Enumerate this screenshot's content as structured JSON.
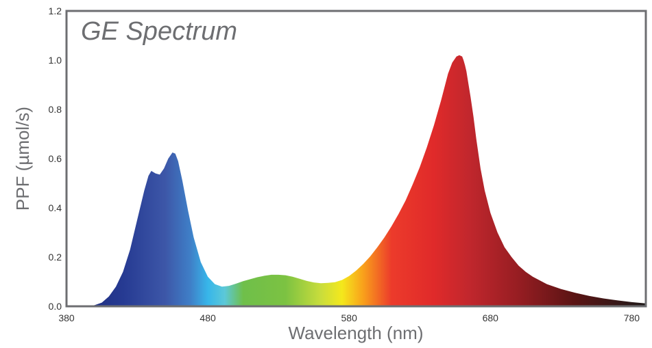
{
  "chart_data": {
    "type": "area",
    "title": "GE Spectrum",
    "xlabel": "Wavelength (nm)",
    "ylabel": "PPF (µmol/s)",
    "xlim": [
      380,
      790
    ],
    "ylim": [
      0,
      1.2
    ],
    "x_ticks": [
      "380",
      "480",
      "580",
      "680",
      "780"
    ],
    "y_ticks": [
      "0.0",
      "0.2",
      "0.4",
      "0.6",
      "0.8",
      "1.0",
      "1.2"
    ],
    "grid": false,
    "legend": "none",
    "frame_color": "#6d6e71",
    "series": [
      {
        "x": [
          380,
          395,
          400,
          405,
          410,
          415,
          420,
          425,
          430,
          435,
          438,
          440,
          443,
          446,
          449,
          452,
          455,
          457,
          459,
          462,
          466,
          470,
          475,
          480,
          485,
          490,
          495,
          500,
          505,
          510,
          515,
          520,
          525,
          530,
          535,
          540,
          545,
          550,
          555,
          560,
          565,
          570,
          575,
          580,
          585,
          590,
          595,
          600,
          605,
          610,
          615,
          620,
          625,
          630,
          635,
          640,
          645,
          650,
          653,
          656,
          658,
          660,
          661,
          662,
          663,
          664,
          666,
          668,
          670,
          673,
          676,
          680,
          685,
          690,
          695,
          700,
          705,
          710,
          720,
          730,
          740,
          750,
          760,
          770,
          780,
          790
        ],
        "y": [
          0.0,
          0.0,
          0.005,
          0.015,
          0.04,
          0.08,
          0.14,
          0.23,
          0.35,
          0.47,
          0.53,
          0.55,
          0.54,
          0.535,
          0.56,
          0.6,
          0.625,
          0.62,
          0.59,
          0.51,
          0.39,
          0.28,
          0.18,
          0.12,
          0.09,
          0.08,
          0.083,
          0.092,
          0.102,
          0.11,
          0.118,
          0.124,
          0.128,
          0.128,
          0.126,
          0.12,
          0.112,
          0.103,
          0.097,
          0.094,
          0.095,
          0.098,
          0.107,
          0.123,
          0.145,
          0.172,
          0.203,
          0.24,
          0.28,
          0.325,
          0.375,
          0.43,
          0.495,
          0.565,
          0.645,
          0.735,
          0.835,
          0.945,
          0.99,
          1.015,
          1.02,
          1.015,
          1.0,
          0.98,
          0.955,
          0.92,
          0.85,
          0.77,
          0.68,
          0.56,
          0.47,
          0.38,
          0.3,
          0.24,
          0.2,
          0.165,
          0.14,
          0.12,
          0.09,
          0.07,
          0.055,
          0.042,
          0.032,
          0.024,
          0.017,
          0.012
        ]
      }
    ],
    "gradient": [
      {
        "nm": 380,
        "color": "#1e2a78"
      },
      {
        "nm": 420,
        "color": "#263a92"
      },
      {
        "nm": 450,
        "color": "#3d57a8"
      },
      {
        "nm": 468,
        "color": "#3f80c8"
      },
      {
        "nm": 480,
        "color": "#37b6ea"
      },
      {
        "nm": 492,
        "color": "#5cc8d8"
      },
      {
        "nm": 505,
        "color": "#6fbf4a"
      },
      {
        "nm": 535,
        "color": "#7cc242"
      },
      {
        "nm": 560,
        "color": "#c9dd3c"
      },
      {
        "nm": 575,
        "color": "#f4e81c"
      },
      {
        "nm": 590,
        "color": "#f9a01b"
      },
      {
        "nm": 610,
        "color": "#ec3b2b"
      },
      {
        "nm": 640,
        "color": "#e02a2a"
      },
      {
        "nm": 665,
        "color": "#c1272d"
      },
      {
        "nm": 700,
        "color": "#961d22"
      },
      {
        "nm": 740,
        "color": "#5a1414"
      },
      {
        "nm": 790,
        "color": "#1f1b1b"
      }
    ]
  }
}
